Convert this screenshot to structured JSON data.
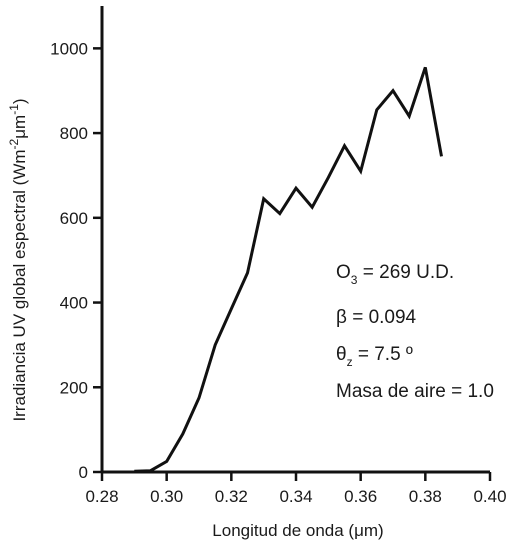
{
  "chart_data": {
    "type": "line",
    "xlabel": "Longitud de onda (μm)",
    "ylabel_parts": [
      "Irradiancia UV global espectral (Wm",
      "-2",
      "μm",
      "-1",
      ")"
    ],
    "xlim": [
      0.28,
      0.4
    ],
    "ylim": [
      0,
      1100
    ],
    "x_ticks": [
      "0.28",
      "0.30",
      "0.32",
      "0.34",
      "0.36",
      "0.38",
      "0.40"
    ],
    "y_ticks": [
      "0",
      "200",
      "400",
      "600",
      "800",
      "1000"
    ],
    "grid": false,
    "legend": "none",
    "line_color": "#111111",
    "series": [
      {
        "x": [
          0.29,
          0.295,
          0.3,
          0.305,
          0.31,
          0.315,
          0.32,
          0.325,
          0.33,
          0.335,
          0.34,
          0.345,
          0.35,
          0.355,
          0.36,
          0.365,
          0.37,
          0.375,
          0.38,
          0.385
        ],
        "y": [
          2,
          3,
          25,
          90,
          175,
          300,
          385,
          470,
          645,
          610,
          670,
          625,
          695,
          770,
          710,
          855,
          900,
          840,
          955,
          745
        ]
      }
    ],
    "annotations": {
      "ozone": {
        "a": "O",
        "sub": "3",
        "b": " = 269 U.D."
      },
      "beta": "β =  0.094",
      "theta": {
        "a": "θ",
        "sub": "z",
        "b": " = 7.5 º"
      },
      "airmass": "Masa de aire = 1.0"
    }
  }
}
